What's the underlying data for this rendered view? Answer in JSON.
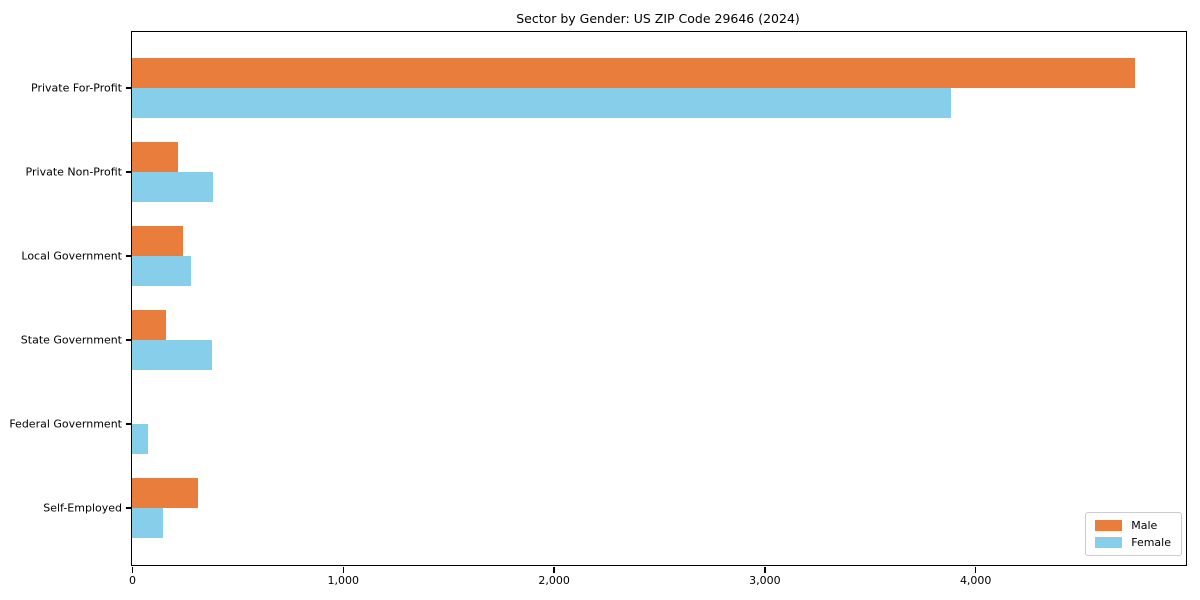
{
  "chart_data": {
    "type": "bar",
    "orientation": "horizontal",
    "title": "Sector by Gender: US ZIP Code 29646 (2024)",
    "categories": [
      "Private For-Profit",
      "Private Non-Profit",
      "Local Government",
      "State Government",
      "Federal Government",
      "Self-Employed"
    ],
    "series": [
      {
        "name": "Male",
        "color": "#e87d3c",
        "values": [
          4760,
          220,
          240,
          160,
          0,
          315
        ]
      },
      {
        "name": "Female",
        "color": "#87ceeb",
        "values": [
          3885,
          385,
          280,
          380,
          78,
          147
        ]
      }
    ],
    "xlabel": "",
    "ylabel": "",
    "xlim": [
      0,
      5000
    ],
    "xticks": [
      {
        "value": 0,
        "label": "0"
      },
      {
        "value": 1000,
        "label": "1,000"
      },
      {
        "value": 2000,
        "label": "2,000"
      },
      {
        "value": 3000,
        "label": "3,000"
      },
      {
        "value": 4000,
        "label": "4,000"
      }
    ],
    "grid": false,
    "legend": {
      "position": "lower right"
    }
  }
}
